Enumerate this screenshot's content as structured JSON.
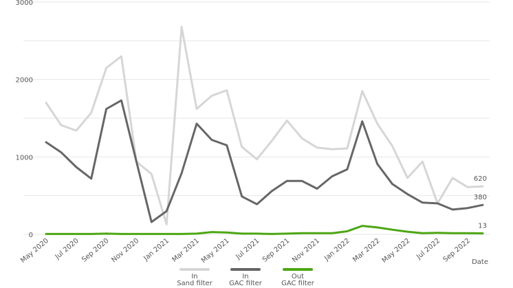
{
  "chart_data": {
    "type": "line",
    "xlabel": "Date",
    "ylabel": "",
    "ylim": [
      0,
      3000
    ],
    "y_ticks": [
      "0",
      "1000",
      "2000",
      "3000"
    ],
    "y_tick_values": [
      0,
      1000,
      2000,
      3000
    ],
    "grid": true,
    "legend_position": "bottom",
    "x": [
      "May 2020",
      "Jun 2020",
      "Jul 2020",
      "Aug 2020",
      "Sep 2020",
      "Oct 2020",
      "Nov 2020",
      "Dec 2020",
      "Jan 2021",
      "Feb 2021",
      "Mar 2021",
      "Apr 2021",
      "May 2021",
      "Jun 2021",
      "Jul 2021",
      "Aug 2021",
      "Sep 2021",
      "Oct 2021",
      "Nov 2021",
      "Dec 2021",
      "Jan 2022",
      "Feb 2022",
      "Mar 2022",
      "Apr 2022",
      "May 2022",
      "Jun 2022",
      "Jul 2022",
      "Aug 2022",
      "Sep 2022",
      "Oct 2022"
    ],
    "x_tick_labels": [
      {
        "label": "May 2020",
        "index": 0
      },
      {
        "label": "Jul 2020",
        "index": 2
      },
      {
        "label": "Sep 2020",
        "index": 4
      },
      {
        "label": "Nov 2020",
        "index": 6
      },
      {
        "label": "Jan 2021",
        "index": 8
      },
      {
        "label": "Mar 2021",
        "index": 10
      },
      {
        "label": "May 2021",
        "index": 12
      },
      {
        "label": "Jul 2021",
        "index": 14
      },
      {
        "label": "Sep 2021",
        "index": 16
      },
      {
        "label": "Nov 2021",
        "index": 18
      },
      {
        "label": "Jan 2022",
        "index": 20
      },
      {
        "label": "Mar 2022",
        "index": 22
      },
      {
        "label": "May 2022",
        "index": 24
      },
      {
        "label": "Jul 2022",
        "index": 26
      },
      {
        "label": "Sep 2022",
        "index": 28
      }
    ],
    "series": [
      {
        "name": "In Sand filter",
        "legend_lines": [
          "In",
          "Sand filter"
        ],
        "color": "#d6d6d6",
        "end_label": "620",
        "values": [
          1700,
          1410,
          1340,
          1570,
          2150,
          2300,
          940,
          780,
          130,
          2680,
          1620,
          1790,
          1860,
          1130,
          970,
          1210,
          1470,
          1240,
          1120,
          1100,
          1110,
          1850,
          1430,
          1140,
          730,
          940,
          400,
          730,
          610,
          620
        ]
      },
      {
        "name": "In GAC filter",
        "legend_lines": [
          "In",
          "GAC filter"
        ],
        "color": "#666666",
        "end_label": "380",
        "values": [
          1190,
          1060,
          870,
          720,
          1620,
          1730,
          940,
          160,
          300,
          790,
          1430,
          1220,
          1150,
          490,
          390,
          560,
          690,
          690,
          590,
          750,
          840,
          1460,
          910,
          650,
          520,
          410,
          400,
          320,
          340,
          380
        ]
      },
      {
        "name": "Out GAC filter",
        "legend_lines": [
          "Out",
          "GAC filter"
        ],
        "color": "#4ca612",
        "end_label": "13",
        "values": [
          5,
          5,
          5,
          5,
          10,
          5,
          5,
          5,
          5,
          5,
          10,
          30,
          25,
          10,
          10,
          5,
          10,
          15,
          15,
          15,
          40,
          110,
          90,
          60,
          35,
          15,
          20,
          15,
          15,
          13
        ]
      }
    ]
  }
}
